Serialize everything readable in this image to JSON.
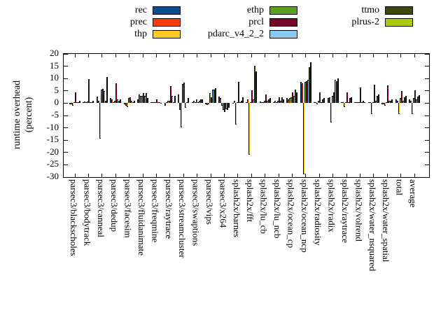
{
  "figure": {
    "background": "#ffffff",
    "y_axis_title_line1": "runtime overhead",
    "y_axis_title_line2": "(percent)"
  },
  "chart_data": {
    "type": "bar",
    "title": "",
    "xlabel": "",
    "ylabel": "runtime overhead (percent)",
    "ylim": [
      -30,
      20
    ],
    "ytick_step": 5,
    "yticks": [
      20,
      15,
      10,
      5,
      0,
      -5,
      -10,
      -15,
      -20,
      -25,
      -30
    ],
    "grid": false,
    "legend_position": "top",
    "bar_outline_color": "#000000",
    "categories": [
      "parsec3/blackscholes",
      "parsec3/bodytrack",
      "parsec3/canneal",
      "parsec3/dedup",
      "parsec3/facesim",
      "parsec3/fluidanimate",
      "parsec3/freqmine",
      "parsec3/raytrace",
      "parsec3/streamcluster",
      "parsec3/swaptions",
      "parsec3/vips",
      "parsec3/x264",
      "splash2x/barnes",
      "splash2x/fft",
      "splash2x/lu_cb",
      "splash2x/lu_ncb",
      "splash2x/ocean_cp",
      "splash2x/ocean_ncp",
      "splash2x/radiosity",
      "splash2x/radix",
      "splash2x/raytrace",
      "splash2x/volrend",
      "splash2x/water_nsquared",
      "splash2x/water_spatial",
      "total",
      "average"
    ],
    "series": [
      {
        "name": "rec",
        "color": "#0b4f8f",
        "values": [
          -0.5,
          0.3,
          2.7,
          2.0,
          -0.5,
          1.5,
          0.5,
          -1.0,
          3.5,
          0.5,
          -0.5,
          2.7,
          -0.3,
          0.5,
          0.7,
          0.5,
          2.0,
          8.5,
          0.5,
          2.0,
          0.5,
          0.5,
          0.5,
          -0.5,
          1.5,
          1.4
        ]
      },
      {
        "name": "prec",
        "color": "#f93c0a",
        "values": [
          -0.5,
          0.8,
          1.0,
          1.5,
          -1.0,
          3.5,
          0.5,
          0.5,
          -2.8,
          1.0,
          -0.7,
          2.0,
          1.0,
          1.5,
          0.5,
          1.0,
          1.5,
          8.0,
          0.5,
          2.5,
          0.5,
          0.5,
          0.5,
          -0.5,
          1.0,
          1.0
        ]
      },
      {
        "name": "thp",
        "color": "#fdc821",
        "values": [
          -1.0,
          0.3,
          -14.5,
          0.5,
          -1.5,
          3.0,
          0.5,
          1.0,
          -9.7,
          0.5,
          -0.5,
          -1.0,
          -8.6,
          -21.0,
          0.5,
          0.5,
          2.0,
          -28.8,
          -0.5,
          -7.8,
          -1.5,
          0.5,
          -4.5,
          -1.0,
          -4.5,
          -4.3
        ]
      },
      {
        "name": "ethp",
        "color": "#5d9f21",
        "values": [
          0.3,
          0.8,
          5.5,
          1.0,
          2.0,
          3.0,
          0.5,
          1.0,
          7.8,
          1.5,
          4.0,
          -2.8,
          0.5,
          0.5,
          1.0,
          1.0,
          2.5,
          8.5,
          1.0,
          3.0,
          0.5,
          0.5,
          0.5,
          0.5,
          2.0,
          2.2
        ]
      },
      {
        "name": "prcl",
        "color": "#77082a",
        "values": [
          4.4,
          9.8,
          5.7,
          8.0,
          2.5,
          4.0,
          1.5,
          7.0,
          8.4,
          0.5,
          2.5,
          -3.7,
          8.6,
          5.2,
          3.5,
          2.5,
          4.5,
          9.0,
          4.5,
          4.5,
          4.5,
          6.5,
          7.5,
          7.3,
          5.0,
          5.3
        ]
      },
      {
        "name": "pdarc_v4_2_2",
        "color": "#8bcaf0",
        "values": [
          0.3,
          0.3,
          5.0,
          1.5,
          1.0,
          3.0,
          0.3,
          3.0,
          -1.8,
          1.0,
          5.5,
          -2.5,
          0.5,
          1.5,
          1.0,
          1.0,
          3.0,
          9.5,
          0.5,
          9.5,
          0.5,
          0.5,
          1.0,
          1.0,
          1.0,
          1.5
        ]
      },
      {
        "name": "ttmo",
        "color": "#3b490f",
        "values": [
          0.3,
          0.5,
          1.0,
          1.0,
          0.5,
          4.0,
          0.5,
          0.5,
          0.5,
          1.5,
          5.5,
          -2.8,
          1.0,
          15.3,
          1.5,
          2.5,
          5.5,
          14.5,
          1.5,
          9.0,
          2.0,
          1.0,
          3.0,
          1.0,
          2.5,
          2.7
        ]
      },
      {
        "name": "plrus-2",
        "color": "#a8ca0a",
        "values": [
          1.0,
          1.0,
          10.5,
          1.5,
          1.0,
          2.0,
          -0.3,
          3.0,
          2.0,
          1.5,
          6.0,
          -1.8,
          2.5,
          12.8,
          2.0,
          1.5,
          4.5,
          16.5,
          2.0,
          10.0,
          2.5,
          0.5,
          3.5,
          1.5,
          3.0,
          3.1
        ]
      }
    ]
  }
}
